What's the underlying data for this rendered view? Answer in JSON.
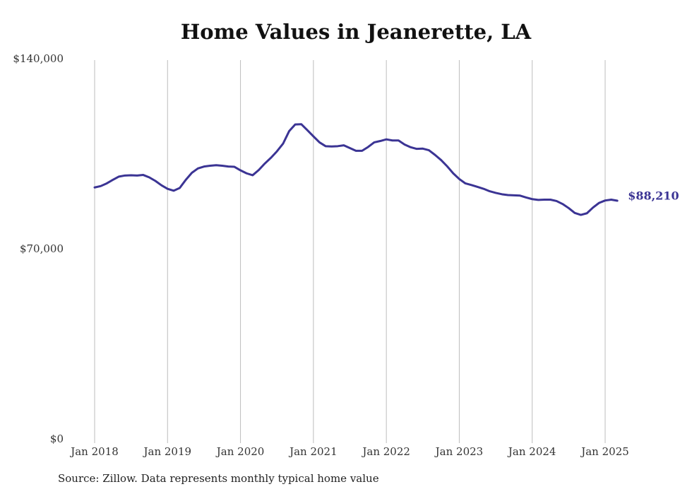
{
  "chart_data": {
    "type": "line",
    "title": "Home Values in Jeanerette, LA",
    "xlabel": "",
    "ylabel": "",
    "ylim": [
      0,
      140000
    ],
    "y_ticks": [
      {
        "value": 0,
        "label": "$0"
      },
      {
        "value": 70000,
        "label": "$70,000"
      },
      {
        "value": 140000,
        "label": "$140,000"
      }
    ],
    "x_ticks": [
      {
        "value": "2018-01",
        "label": "Jan 2018"
      },
      {
        "value": "2019-01",
        "label": "Jan 2019"
      },
      {
        "value": "2020-01",
        "label": "Jan 2020"
      },
      {
        "value": "2021-01",
        "label": "Jan 2021"
      },
      {
        "value": "2022-01",
        "label": "Jan 2022"
      },
      {
        "value": "2023-01",
        "label": "Jan 2023"
      },
      {
        "value": "2024-01",
        "label": "Jan 2024"
      },
      {
        "value": "2025-01",
        "label": "Jan 2025"
      }
    ],
    "grid": "vertical",
    "line_color": "#3b3494",
    "end_label": "$88,210",
    "series": [
      {
        "name": "",
        "x": [
          "2018-01",
          "2018-02",
          "2018-03",
          "2018-04",
          "2018-05",
          "2018-06",
          "2018-07",
          "2018-08",
          "2018-09",
          "2018-10",
          "2018-11",
          "2018-12",
          "2019-01",
          "2019-02",
          "2019-03",
          "2019-04",
          "2019-05",
          "2019-06",
          "2019-07",
          "2019-08",
          "2019-09",
          "2019-10",
          "2019-11",
          "2019-12",
          "2020-01",
          "2020-02",
          "2020-03",
          "2020-04",
          "2020-05",
          "2020-06",
          "2020-07",
          "2020-08",
          "2020-09",
          "2020-10",
          "2020-11",
          "2020-12",
          "2021-01",
          "2021-02",
          "2021-03",
          "2021-04",
          "2021-05",
          "2021-06",
          "2021-07",
          "2021-08",
          "2021-09",
          "2021-10",
          "2021-11",
          "2021-12",
          "2022-01",
          "2022-02",
          "2022-03",
          "2022-04",
          "2022-05",
          "2022-06",
          "2022-07",
          "2022-08",
          "2022-09",
          "2022-10",
          "2022-11",
          "2022-12",
          "2023-01",
          "2023-02",
          "2023-03",
          "2023-04",
          "2023-05",
          "2023-06",
          "2023-07",
          "2023-08",
          "2023-09",
          "2023-10",
          "2023-11",
          "2023-12",
          "2024-01",
          "2024-02",
          "2024-03",
          "2024-04",
          "2024-05",
          "2024-06",
          "2024-07",
          "2024-08",
          "2024-09",
          "2024-10",
          "2024-11",
          "2024-12",
          "2025-01",
          "2025-02",
          "2025-03"
        ],
        "values": [
          93100,
          93600,
          94600,
          95900,
          97100,
          97500,
          97600,
          97500,
          97700,
          96800,
          95500,
          93900,
          92600,
          91900,
          92900,
          95900,
          98500,
          100100,
          100800,
          101100,
          101300,
          101100,
          100800,
          100700,
          99400,
          98300,
          97600,
          99500,
          101900,
          104000,
          106400,
          109200,
          113800,
          116300,
          116400,
          114200,
          111900,
          109700,
          108300,
          108200,
          108300,
          108600,
          107600,
          106600,
          106600,
          108000,
          109700,
          110200,
          110800,
          110400,
          110400,
          108900,
          107900,
          107300,
          107400,
          106800,
          105100,
          103200,
          100900,
          98300,
          96200,
          94600,
          94000,
          93300,
          92600,
          91700,
          91100,
          90600,
          90300,
          90200,
          90100,
          89400,
          88800,
          88500,
          88600,
          88600,
          88100,
          87000,
          85500,
          83700,
          83000,
          83600,
          85700,
          87400,
          88300,
          88600,
          88210
        ]
      }
    ]
  },
  "source_note": "Source: Zillow. Data represents monthly typical home value"
}
